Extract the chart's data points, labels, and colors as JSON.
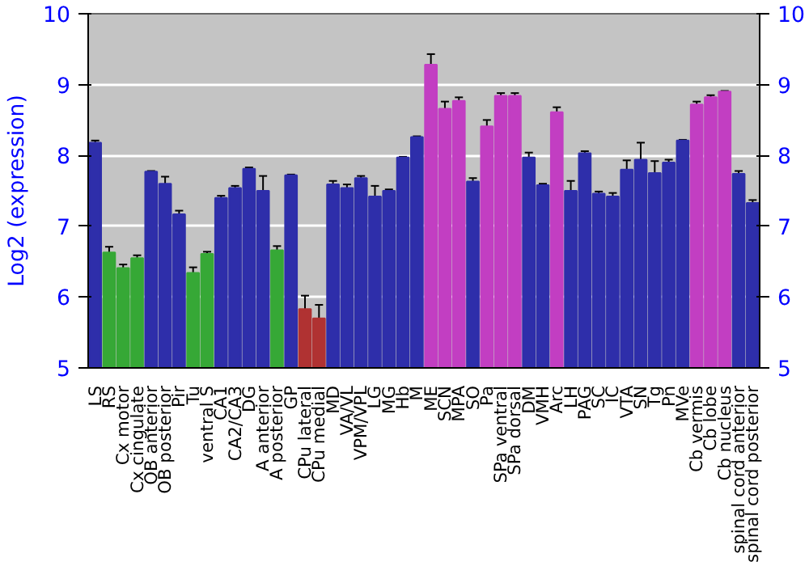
{
  "chart_data": {
    "type": "bar",
    "ylabel": "Log2 (expression)",
    "categories": [
      "LS",
      "RS",
      "Cx motor",
      "Cx cingulate",
      "OB anterior",
      "OB posterior",
      "Pir",
      "Tu",
      "ventral S",
      "CA1",
      "CA2/CA3",
      "DG",
      "A anterior",
      "A posterior",
      "GP",
      "CPu lateral",
      "CPu medial",
      "MD",
      "VA/VL",
      "VPM/VPL",
      "LG",
      "MG",
      "Hb",
      "M",
      "ME",
      "SCN",
      "MPA",
      "SO",
      "Pa",
      "SPa ventral",
      "SPa dorsal",
      "DM",
      "VMH",
      "Arc",
      "LH",
      "PAG",
      "SC",
      "IC",
      "VTA",
      "SN",
      "Tg",
      "Pn",
      "MVe",
      "Cb vermis",
      "Cb lobe",
      "Cb nucleus",
      "spinal cord anterior",
      "spinal cord posterior"
    ],
    "values": [
      8.18,
      6.63,
      6.41,
      6.55,
      7.77,
      7.6,
      7.17,
      6.34,
      6.61,
      7.4,
      7.54,
      7.81,
      7.5,
      6.66,
      7.72,
      5.83,
      5.7,
      7.59,
      7.54,
      7.68,
      7.42,
      7.5,
      7.97,
      8.26,
      9.28,
      8.66,
      8.77,
      7.63,
      8.41,
      8.84,
      8.84,
      7.97,
      7.58,
      8.61,
      7.5,
      8.03,
      7.46,
      7.42,
      7.8,
      7.94,
      7.75,
      7.9,
      8.21,
      8.72,
      8.82,
      8.9,
      7.74,
      7.33
    ],
    "errors": [
      0.03,
      0.08,
      0.05,
      0.04,
      0.01,
      0.1,
      0.05,
      0.08,
      0.03,
      0.03,
      0.03,
      0.02,
      0.21,
      0.06,
      0.01,
      0.19,
      0.19,
      0.05,
      0.05,
      0.03,
      0.15,
      0.02,
      0.01,
      0.01,
      0.15,
      0.1,
      0.05,
      0.05,
      0.09,
      0.04,
      0.04,
      0.07,
      0.02,
      0.07,
      0.14,
      0.03,
      0.03,
      0.05,
      0.13,
      0.24,
      0.17,
      0.04,
      0.01,
      0.04,
      0.03,
      0.01,
      0.04,
      0.04
    ],
    "colors": [
      "#2e2eaa",
      "#36a836",
      "#36a836",
      "#36a836",
      "#2e2eaa",
      "#2e2eaa",
      "#2e2eaa",
      "#36a836",
      "#36a836",
      "#2e2eaa",
      "#2e2eaa",
      "#2e2eaa",
      "#2e2eaa",
      "#36a836",
      "#2e2eaa",
      "#b03232",
      "#b03232",
      "#2e2eaa",
      "#2e2eaa",
      "#2e2eaa",
      "#2e2eaa",
      "#2e2eaa",
      "#2e2eaa",
      "#2e2eaa",
      "#c23ec2",
      "#c23ec2",
      "#c23ec2",
      "#2e2eaa",
      "#c23ec2",
      "#c23ec2",
      "#c23ec2",
      "#2e2eaa",
      "#2e2eaa",
      "#c23ec2",
      "#2e2eaa",
      "#2e2eaa",
      "#2e2eaa",
      "#2e2eaa",
      "#2e2eaa",
      "#2e2eaa",
      "#2e2eaa",
      "#2e2eaa",
      "#2e2eaa",
      "#c23ec2",
      "#c23ec2",
      "#c23ec2",
      "#2e2eaa",
      "#2e2eaa"
    ],
    "ylim": [
      5,
      10
    ],
    "yticks": [
      5,
      6,
      7,
      8,
      9,
      10
    ],
    "y2lim": [
      5,
      10
    ],
    "y2ticks": [
      5,
      6,
      7,
      8,
      9,
      10
    ],
    "grid": "y"
  }
}
